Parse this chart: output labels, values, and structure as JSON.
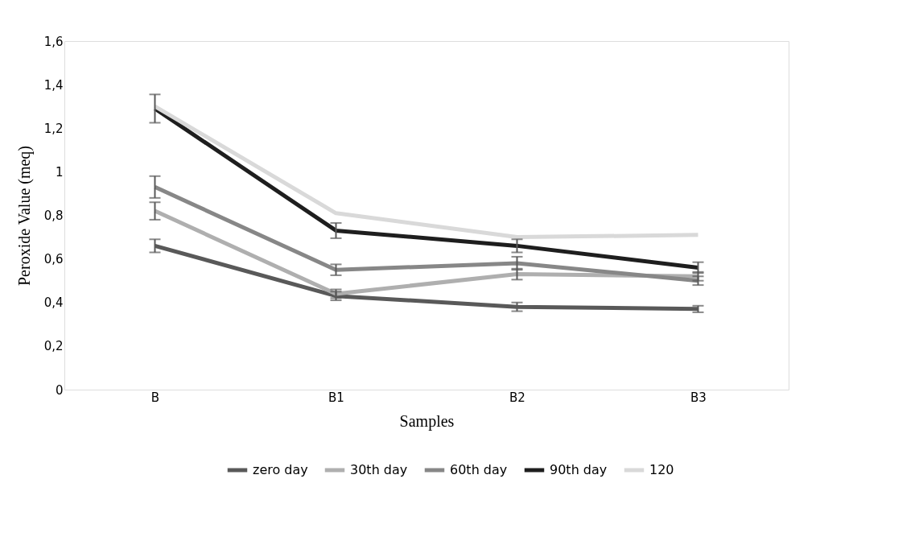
{
  "chart_data": {
    "type": "line",
    "xlabel": "Samples",
    "ylabel": "Peroxide Value (meq)",
    "categories": [
      "B",
      "B1",
      "B2",
      "B3"
    ],
    "series": [
      {
        "name": "zero day",
        "color": "#595959",
        "values": [
          0.66,
          0.43,
          0.38,
          0.37
        ],
        "errors": [
          0.03,
          0.02,
          0.02,
          0.015
        ]
      },
      {
        "name": "30th day",
        "color": "#afafaf",
        "values": [
          0.82,
          0.44,
          0.53,
          0.52
        ],
        "errors": [
          0.04,
          0.02,
          0.025,
          0.02
        ]
      },
      {
        "name": "60th day",
        "color": "#878787",
        "values": [
          0.93,
          0.55,
          0.58,
          0.5
        ],
        "errors": [
          0.05,
          0.025,
          0.03,
          0.02
        ]
      },
      {
        "name": "90th day",
        "color": "#1e1e1e",
        "values": [
          1.29,
          0.73,
          0.66,
          0.56
        ],
        "errors": [
          0.065,
          0.035,
          0.03,
          0.025
        ]
      },
      {
        "name": "120",
        "color": "#d9d9d9",
        "values": [
          1.3,
          0.81,
          0.7,
          0.71
        ]
      }
    ],
    "ylim": [
      0,
      1.6
    ],
    "yticks": [
      {
        "value": 0,
        "label": "0"
      },
      {
        "value": 0.2,
        "label": "0,2"
      },
      {
        "value": 0.4,
        "label": "0,4"
      },
      {
        "value": 0.6,
        "label": "0,6"
      },
      {
        "value": 0.8,
        "label": "0,8"
      },
      {
        "value": 1,
        "label": "1"
      },
      {
        "value": 1.2,
        "label": "1,2"
      },
      {
        "value": 1.4,
        "label": "1,4"
      },
      {
        "value": 1.6,
        "label": "1,6"
      }
    ],
    "grid": false,
    "legend": "bottom",
    "marker": "none",
    "line_style": "solid"
  }
}
